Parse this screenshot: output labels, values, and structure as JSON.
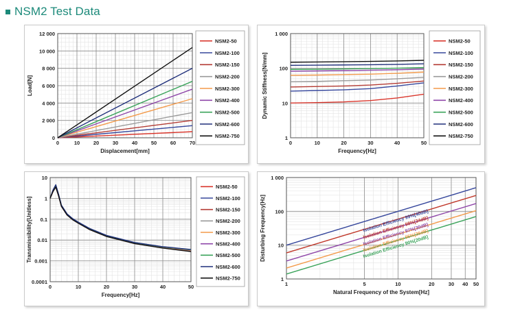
{
  "page": {
    "title": "NSM2 Test Data"
  },
  "models": [
    "NSM2-50",
    "NSM2-100",
    "NSM2-150",
    "NSM2-200",
    "NSM2-300",
    "NSM2-400",
    "NSM2-500",
    "NSM2-600",
    "NSM2-750"
  ],
  "colors": {
    "accent": "#1c8a7a",
    "NSM2-50": "#d9352b",
    "NSM2-100": "#36479c",
    "NSM2-150": "#b33a33",
    "NSM2-200": "#9a9a9a",
    "NSM2-300": "#f39a4a",
    "NSM2-400": "#8e45a8",
    "NSM2-500": "#3aa35a",
    "NSM2-600": "#1f2f7a",
    "NSM2-750": "#111111"
  },
  "chart_data": [
    {
      "id": "load",
      "type": "line",
      "title": "",
      "xlabel": "Displacement[mm]",
      "ylabel": "Load[N]",
      "xlim": [
        0,
        70
      ],
      "ylim": [
        0,
        12000
      ],
      "xticks": [
        0,
        10,
        20,
        30,
        40,
        50,
        60,
        70
      ],
      "yticks": [
        0,
        2000,
        4000,
        6000,
        8000,
        10000,
        12000
      ],
      "ytick_labels": [
        "0",
        "2 000",
        "4 000",
        "6 000",
        "8 000",
        "10 000",
        "12 000"
      ],
      "grid": true,
      "legend": "right",
      "series": [
        {
          "name": "NSM2-50",
          "x": [
            0,
            70
          ],
          "y": [
            0,
            700
          ]
        },
        {
          "name": "NSM2-100",
          "x": [
            0,
            70
          ],
          "y": [
            0,
            1400
          ]
        },
        {
          "name": "NSM2-150",
          "x": [
            0,
            70
          ],
          "y": [
            0,
            2000
          ]
        },
        {
          "name": "NSM2-200",
          "x": [
            0,
            70
          ],
          "y": [
            0,
            2900
          ]
        },
        {
          "name": "NSM2-300",
          "x": [
            0,
            70
          ],
          "y": [
            0,
            4500
          ]
        },
        {
          "name": "NSM2-400",
          "x": [
            0,
            70
          ],
          "y": [
            0,
            5600
          ]
        },
        {
          "name": "NSM2-500",
          "x": [
            0,
            70
          ],
          "y": [
            0,
            6500
          ]
        },
        {
          "name": "NSM2-600",
          "x": [
            0,
            70
          ],
          "y": [
            0,
            8000
          ]
        },
        {
          "name": "NSM2-750",
          "x": [
            0,
            70
          ],
          "y": [
            0,
            10400
          ]
        }
      ]
    },
    {
      "id": "stiffness",
      "type": "line",
      "title": "",
      "xlabel": "Frequency[Hz]",
      "ylabel": "Dynamic Stiffness[N/mm]",
      "xlim": [
        0,
        50
      ],
      "ylim": [
        1,
        1000
      ],
      "yscale": "log",
      "xticks": [
        0,
        10,
        20,
        30,
        40,
        50
      ],
      "yticks": [
        1,
        10,
        100,
        1000
      ],
      "ytick_labels": [
        "1",
        "10",
        "100",
        "1 000"
      ],
      "grid": true,
      "legend": "right",
      "series": [
        {
          "name": "NSM2-50",
          "x": [
            0,
            10,
            20,
            30,
            40,
            50
          ],
          "y": [
            10,
            10.3,
            10.8,
            11.8,
            14,
            18
          ]
        },
        {
          "name": "NSM2-100",
          "x": [
            0,
            10,
            20,
            30,
            40,
            50
          ],
          "y": [
            22,
            23,
            24,
            26,
            31,
            38
          ]
        },
        {
          "name": "NSM2-150",
          "x": [
            0,
            10,
            20,
            30,
            40,
            50
          ],
          "y": [
            29,
            30,
            31,
            33,
            37,
            43
          ]
        },
        {
          "name": "NSM2-200",
          "x": [
            0,
            10,
            20,
            30,
            40,
            50
          ],
          "y": [
            41,
            42,
            44,
            46,
            50,
            55
          ]
        },
        {
          "name": "NSM2-300",
          "x": [
            0,
            10,
            20,
            30,
            40,
            50
          ],
          "y": [
            63,
            64,
            66,
            68,
            72,
            78
          ]
        },
        {
          "name": "NSM2-400",
          "x": [
            0,
            10,
            20,
            30,
            40,
            50
          ],
          "y": [
            83,
            84,
            86,
            88,
            91,
            95
          ]
        },
        {
          "name": "NSM2-500",
          "x": [
            0,
            10,
            20,
            30,
            40,
            50
          ],
          "y": [
            93,
            94,
            96,
            98,
            101,
            105
          ]
        },
        {
          "name": "NSM2-600",
          "x": [
            0,
            10,
            20,
            30,
            40,
            50
          ],
          "y": [
            122,
            123,
            125,
            127,
            130,
            135
          ]
        },
        {
          "name": "NSM2-750",
          "x": [
            0,
            10,
            20,
            30,
            40,
            50
          ],
          "y": [
            150,
            152,
            155,
            158,
            163,
            170
          ]
        }
      ]
    },
    {
      "id": "transmissibility",
      "type": "line",
      "title": "",
      "xlabel": "Frequency[Hz]",
      "ylabel": "Transmissibility[Unitless]",
      "xlim": [
        0,
        50
      ],
      "ylim": [
        0.0001,
        10
      ],
      "yscale": "log",
      "xticks": [
        0,
        10,
        20,
        30,
        40,
        50
      ],
      "yticks": [
        0.0001,
        0.001,
        0.01,
        0.1,
        1,
        10
      ],
      "ytick_labels": [
        "0.0001",
        "0.001",
        "0.01",
        "0.1",
        "1",
        "10"
      ],
      "grid": true,
      "legend": "right",
      "series": [
        {
          "name": "NSM2-50",
          "x": [
            0,
            1,
            2,
            3,
            4,
            6,
            8,
            10,
            14,
            20,
            30,
            40,
            50
          ],
          "y": [
            1,
            2.1,
            3.6,
            1.3,
            0.42,
            0.16,
            0.095,
            0.065,
            0.032,
            0.015,
            0.0068,
            0.0042,
            0.0029
          ]
        },
        {
          "name": "NSM2-100",
          "x": [
            0,
            1,
            2,
            3,
            4,
            6,
            8,
            10,
            14,
            20,
            30,
            40,
            50
          ],
          "y": [
            1,
            2.2,
            3.8,
            1.35,
            0.43,
            0.165,
            0.097,
            0.066,
            0.033,
            0.0153,
            0.0069,
            0.0043,
            0.003
          ]
        },
        {
          "name": "NSM2-150",
          "x": [
            0,
            1,
            2,
            3,
            4,
            6,
            8,
            10,
            14,
            20,
            30,
            40,
            50
          ],
          "y": [
            1,
            2.2,
            3.9,
            1.4,
            0.44,
            0.168,
            0.099,
            0.067,
            0.0335,
            0.0155,
            0.007,
            0.0044,
            0.0031
          ]
        },
        {
          "name": "NSM2-200",
          "x": [
            0,
            1,
            2,
            3,
            4,
            6,
            8,
            10,
            14,
            20,
            30,
            40,
            50
          ],
          "y": [
            1,
            2.3,
            4.0,
            1.4,
            0.44,
            0.17,
            0.1,
            0.068,
            0.034,
            0.0157,
            0.0072,
            0.0045,
            0.0032
          ]
        },
        {
          "name": "NSM2-300",
          "x": [
            0,
            1,
            2,
            3,
            4,
            6,
            8,
            10,
            14,
            20,
            30,
            40,
            50
          ],
          "y": [
            1,
            2.3,
            4.1,
            1.45,
            0.45,
            0.172,
            0.101,
            0.069,
            0.0345,
            0.016,
            0.0073,
            0.0046,
            0.0033
          ]
        },
        {
          "name": "NSM2-400",
          "x": [
            0,
            1,
            2,
            3,
            4,
            6,
            8,
            10,
            14,
            20,
            30,
            40,
            50
          ],
          "y": [
            1,
            2.4,
            4.2,
            1.5,
            0.46,
            0.175,
            0.103,
            0.07,
            0.035,
            0.0162,
            0.0074,
            0.0047,
            0.0034
          ]
        },
        {
          "name": "NSM2-500",
          "x": [
            0,
            1,
            2,
            3,
            4,
            6,
            8,
            10,
            14,
            20,
            30,
            40,
            50
          ],
          "y": [
            1,
            2.4,
            4.3,
            1.5,
            0.46,
            0.176,
            0.104,
            0.071,
            0.0355,
            0.0164,
            0.0075,
            0.0047,
            0.0034
          ]
        },
        {
          "name": "NSM2-600",
          "x": [
            0,
            1,
            2,
            3,
            4,
            6,
            8,
            10,
            14,
            20,
            30,
            40,
            50
          ],
          "y": [
            1,
            2.5,
            4.5,
            1.55,
            0.47,
            0.18,
            0.106,
            0.072,
            0.036,
            0.0167,
            0.0076,
            0.0048,
            0.0035
          ]
        },
        {
          "name": "NSM2-750",
          "x": [
            0,
            1,
            2,
            3,
            4,
            6,
            8,
            10,
            14,
            20,
            30,
            40,
            50
          ],
          "y": [
            1,
            2.1,
            3.5,
            1.3,
            0.41,
            0.158,
            0.094,
            0.064,
            0.0318,
            0.0148,
            0.0067,
            0.0041,
            0.0028
          ]
        }
      ]
    },
    {
      "id": "isolation",
      "type": "line",
      "title": "",
      "xlabel": "Natural Frequency of the System[Hz]",
      "ylabel": "Disturbing Frequency[Hz]",
      "xlim": [
        1,
        50
      ],
      "ylim": [
        1,
        1000
      ],
      "xscale": "log",
      "yscale": "log",
      "xticks": [
        1,
        5,
        10,
        20,
        30,
        40,
        50
      ],
      "xtick_labels": [
        "1",
        "5",
        "10",
        "20",
        "30",
        "40",
        "50"
      ],
      "yticks": [
        1,
        10,
        100,
        1000
      ],
      "ytick_labels": [
        "1",
        "10",
        "100",
        "1 000"
      ],
      "grid": true,
      "legend": "none",
      "series": [
        {
          "name": "Isolation Efficiency 99%[40dB]",
          "color": "#36479c",
          "x": [
            1,
            50
          ],
          "y": [
            10,
            500
          ]
        },
        {
          "name": "Isolation Efficiency 98%[34dB]",
          "color": "#c0392b",
          "x": [
            1,
            50
          ],
          "y": [
            5.9,
            295
          ]
        },
        {
          "name": "Isolation Efficiency 97%[30dB]",
          "color": "#8e45a8",
          "x": [
            1,
            50
          ],
          "y": [
            3.4,
            170
          ]
        },
        {
          "name": "Isolation Efficiency 95%[26dB]",
          "color": "#f39a4a",
          "x": [
            1,
            50
          ],
          "y": [
            2.1,
            105
          ]
        },
        {
          "name": "Isolation Efficiency 90%[20dB]",
          "color": "#3aa35a",
          "x": [
            1,
            50
          ],
          "y": [
            1.4,
            70
          ]
        }
      ],
      "annotations": [
        {
          "text": "Isolation Efficiency 99%[40dB]",
          "x": 9.6,
          "y": 48,
          "color": "#36479c"
        },
        {
          "text": "Isolation Efficiency 98%[34dB]",
          "x": 9.6,
          "y": 30,
          "color": "#c0392b"
        },
        {
          "text": "Isolation Efficiency 97%[30dB]",
          "x": 9.6,
          "y": 19,
          "color": "#8e45a8"
        },
        {
          "text": "Isolation Efficiency 95%[26dB]",
          "x": 9.6,
          "y": 12.5,
          "color": "#f39a4a"
        },
        {
          "text": "Isolation Efficiency 90%[20dB]",
          "x": 9.6,
          "y": 8.2,
          "color": "#3aa35a"
        }
      ]
    }
  ]
}
